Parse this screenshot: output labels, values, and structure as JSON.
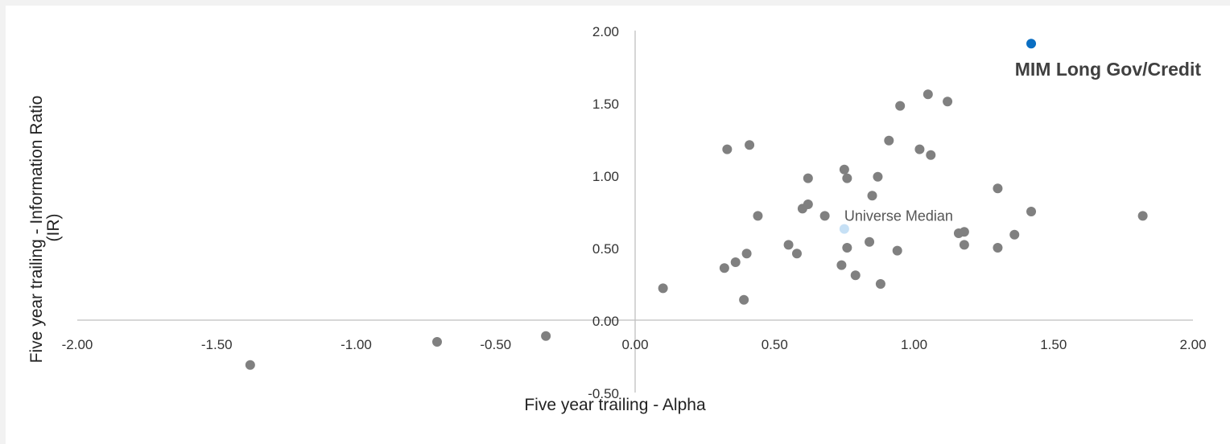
{
  "chart_data": {
    "type": "scatter",
    "title": "",
    "xlabel": "Five year trailing - Alpha",
    "ylabel": "Five year trailing - Information Ratio (IR)",
    "ylabel_lines": [
      "Five year trailing - Information Ratio",
      "(IR)"
    ],
    "xlim": [
      -2,
      2
    ],
    "ylim": [
      -0.5,
      2
    ],
    "x_ticks": [
      "-2.00",
      "-1.50",
      "-1.00",
      "-0.50",
      "0.00",
      "0.50",
      "1.00",
      "1.50",
      "2.00"
    ],
    "y_ticks": [
      "-0.50",
      "0.00",
      "0.50",
      "1.00",
      "1.50",
      "2.00"
    ],
    "grid": false,
    "series": [
      {
        "color": "#808080",
        "points": [
          [
            -1.38,
            -0.31
          ],
          [
            -0.71,
            -0.15
          ],
          [
            -0.32,
            -0.11
          ],
          [
            0.1,
            0.22
          ],
          [
            0.32,
            0.36
          ],
          [
            0.36,
            0.4
          ],
          [
            0.39,
            0.14
          ],
          [
            0.4,
            0.46
          ],
          [
            0.33,
            1.18
          ],
          [
            0.41,
            1.21
          ],
          [
            0.44,
            0.72
          ],
          [
            0.55,
            0.52
          ],
          [
            0.58,
            0.46
          ],
          [
            0.6,
            0.77
          ],
          [
            0.62,
            0.8
          ],
          [
            0.62,
            0.98
          ],
          [
            0.68,
            0.72
          ],
          [
            0.74,
            0.38
          ],
          [
            0.75,
            1.04
          ],
          [
            0.76,
            0.5
          ],
          [
            0.76,
            0.98
          ],
          [
            0.79,
            0.31
          ],
          [
            0.84,
            0.54
          ],
          [
            0.85,
            0.86
          ],
          [
            0.87,
            0.99
          ],
          [
            0.88,
            0.25
          ],
          [
            0.91,
            1.24
          ],
          [
            0.94,
            0.48
          ],
          [
            0.95,
            1.48
          ],
          [
            1.02,
            1.18
          ],
          [
            1.05,
            1.56
          ],
          [
            1.06,
            1.14
          ],
          [
            1.12,
            1.51
          ],
          [
            1.16,
            0.6
          ],
          [
            1.18,
            0.61
          ],
          [
            1.18,
            0.52
          ],
          [
            1.3,
            0.91
          ],
          [
            1.3,
            0.5
          ],
          [
            1.36,
            0.59
          ],
          [
            1.42,
            0.75
          ],
          [
            1.82,
            0.72
          ]
        ]
      },
      {
        "name": "Universe Median",
        "color": "#c6e0f5",
        "points": [
          [
            0.75,
            0.63
          ]
        ]
      },
      {
        "name": "MIM Long Gov/Credit",
        "color": "#0a6ec2",
        "points": [
          [
            1.42,
            1.91
          ]
        ]
      }
    ],
    "annotations": [
      {
        "text": "Universe Median",
        "x": 0.75,
        "y": 0.63,
        "style": "plain"
      },
      {
        "text": "MIM Long Gov/Credit",
        "x": 1.42,
        "y": 1.91,
        "style": "bold"
      }
    ]
  }
}
